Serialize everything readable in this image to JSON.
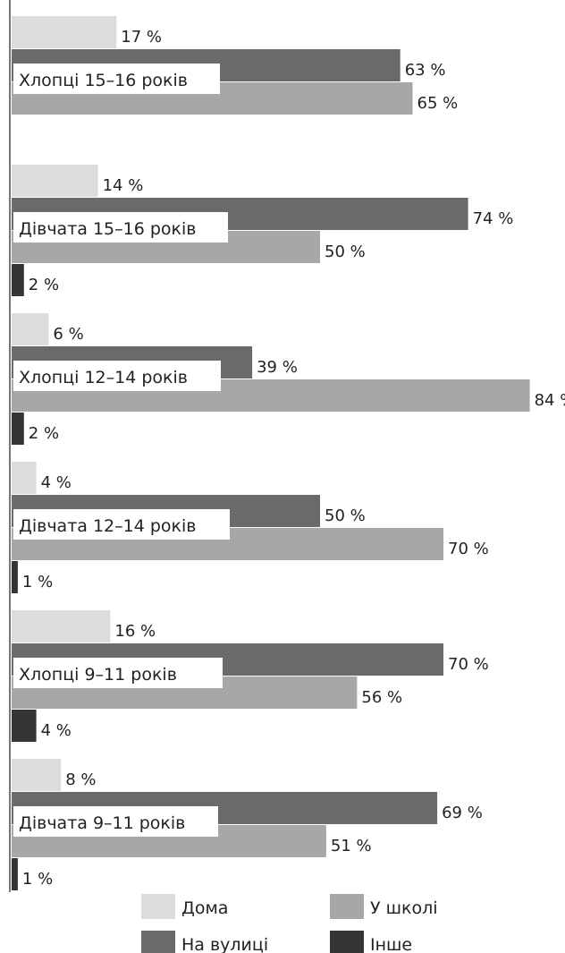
{
  "chart_data": {
    "type": "bar",
    "orientation": "horizontal",
    "grid": false,
    "legend_position": "bottom",
    "xlim": [
      0,
      100
    ],
    "value_suffix": " %",
    "series": [
      {
        "name": "Дома",
        "color": "#dcdcdc"
      },
      {
        "name": "На вулиці",
        "color": "#6a6a6a"
      },
      {
        "name": "У школі",
        "color": "#a7a7a7"
      },
      {
        "name": "Інше",
        "color": "#353535"
      }
    ],
    "groups": [
      {
        "label": "Хлопці 15–16 років",
        "values": [
          17,
          63,
          65,
          null
        ]
      },
      {
        "label": "Дівчата 15–16 років",
        "values": [
          14,
          74,
          50,
          2
        ]
      },
      {
        "label": "Хлопці 12–14 років",
        "values": [
          6,
          39,
          84,
          2
        ]
      },
      {
        "label": "Дівчата 12–14 років",
        "values": [
          4,
          50,
          70,
          1
        ]
      },
      {
        "label": "Хлопці 9–11 років",
        "values": [
          16,
          70,
          56,
          4
        ]
      },
      {
        "label": "Дівчата 9–11 років",
        "values": [
          8,
          69,
          51,
          1
        ]
      }
    ],
    "legend": [
      {
        "label": "Дома",
        "color": "#dcdcdc"
      },
      {
        "label": "У школі",
        "color": "#a7a7a7"
      },
      {
        "label": "На вулиці",
        "color": "#6a6a6a"
      },
      {
        "label": "Інше",
        "color": "#353535"
      }
    ]
  }
}
